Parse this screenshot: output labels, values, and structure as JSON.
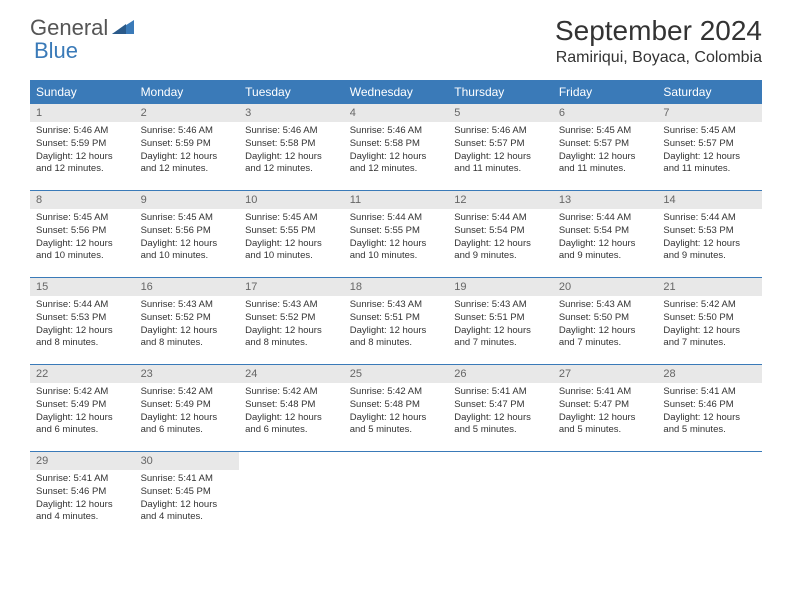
{
  "logo": {
    "text1": "General",
    "text2": "Blue"
  },
  "title": "September 2024",
  "location": "Ramiriqui, Boyaca, Colombia",
  "colors": {
    "header_bg": "#3a7ab8",
    "header_text": "#ffffff",
    "daynum_bg": "#e8e8e8",
    "daynum_text": "#666666",
    "body_text": "#333333",
    "divider": "#3a7ab8",
    "logo_gray": "#555555",
    "logo_blue": "#3a7ab8"
  },
  "day_labels": [
    "Sunday",
    "Monday",
    "Tuesday",
    "Wednesday",
    "Thursday",
    "Friday",
    "Saturday"
  ],
  "weeks": [
    [
      {
        "num": "1",
        "sunrise": "Sunrise: 5:46 AM",
        "sunset": "Sunset: 5:59 PM",
        "daylight": "Daylight: 12 hours and 12 minutes."
      },
      {
        "num": "2",
        "sunrise": "Sunrise: 5:46 AM",
        "sunset": "Sunset: 5:59 PM",
        "daylight": "Daylight: 12 hours and 12 minutes."
      },
      {
        "num": "3",
        "sunrise": "Sunrise: 5:46 AM",
        "sunset": "Sunset: 5:58 PM",
        "daylight": "Daylight: 12 hours and 12 minutes."
      },
      {
        "num": "4",
        "sunrise": "Sunrise: 5:46 AM",
        "sunset": "Sunset: 5:58 PM",
        "daylight": "Daylight: 12 hours and 12 minutes."
      },
      {
        "num": "5",
        "sunrise": "Sunrise: 5:46 AM",
        "sunset": "Sunset: 5:57 PM",
        "daylight": "Daylight: 12 hours and 11 minutes."
      },
      {
        "num": "6",
        "sunrise": "Sunrise: 5:45 AM",
        "sunset": "Sunset: 5:57 PM",
        "daylight": "Daylight: 12 hours and 11 minutes."
      },
      {
        "num": "7",
        "sunrise": "Sunrise: 5:45 AM",
        "sunset": "Sunset: 5:57 PM",
        "daylight": "Daylight: 12 hours and 11 minutes."
      }
    ],
    [
      {
        "num": "8",
        "sunrise": "Sunrise: 5:45 AM",
        "sunset": "Sunset: 5:56 PM",
        "daylight": "Daylight: 12 hours and 10 minutes."
      },
      {
        "num": "9",
        "sunrise": "Sunrise: 5:45 AM",
        "sunset": "Sunset: 5:56 PM",
        "daylight": "Daylight: 12 hours and 10 minutes."
      },
      {
        "num": "10",
        "sunrise": "Sunrise: 5:45 AM",
        "sunset": "Sunset: 5:55 PM",
        "daylight": "Daylight: 12 hours and 10 minutes."
      },
      {
        "num": "11",
        "sunrise": "Sunrise: 5:44 AM",
        "sunset": "Sunset: 5:55 PM",
        "daylight": "Daylight: 12 hours and 10 minutes."
      },
      {
        "num": "12",
        "sunrise": "Sunrise: 5:44 AM",
        "sunset": "Sunset: 5:54 PM",
        "daylight": "Daylight: 12 hours and 9 minutes."
      },
      {
        "num": "13",
        "sunrise": "Sunrise: 5:44 AM",
        "sunset": "Sunset: 5:54 PM",
        "daylight": "Daylight: 12 hours and 9 minutes."
      },
      {
        "num": "14",
        "sunrise": "Sunrise: 5:44 AM",
        "sunset": "Sunset: 5:53 PM",
        "daylight": "Daylight: 12 hours and 9 minutes."
      }
    ],
    [
      {
        "num": "15",
        "sunrise": "Sunrise: 5:44 AM",
        "sunset": "Sunset: 5:53 PM",
        "daylight": "Daylight: 12 hours and 8 minutes."
      },
      {
        "num": "16",
        "sunrise": "Sunrise: 5:43 AM",
        "sunset": "Sunset: 5:52 PM",
        "daylight": "Daylight: 12 hours and 8 minutes."
      },
      {
        "num": "17",
        "sunrise": "Sunrise: 5:43 AM",
        "sunset": "Sunset: 5:52 PM",
        "daylight": "Daylight: 12 hours and 8 minutes."
      },
      {
        "num": "18",
        "sunrise": "Sunrise: 5:43 AM",
        "sunset": "Sunset: 5:51 PM",
        "daylight": "Daylight: 12 hours and 8 minutes."
      },
      {
        "num": "19",
        "sunrise": "Sunrise: 5:43 AM",
        "sunset": "Sunset: 5:51 PM",
        "daylight": "Daylight: 12 hours and 7 minutes."
      },
      {
        "num": "20",
        "sunrise": "Sunrise: 5:43 AM",
        "sunset": "Sunset: 5:50 PM",
        "daylight": "Daylight: 12 hours and 7 minutes."
      },
      {
        "num": "21",
        "sunrise": "Sunrise: 5:42 AM",
        "sunset": "Sunset: 5:50 PM",
        "daylight": "Daylight: 12 hours and 7 minutes."
      }
    ],
    [
      {
        "num": "22",
        "sunrise": "Sunrise: 5:42 AM",
        "sunset": "Sunset: 5:49 PM",
        "daylight": "Daylight: 12 hours and 6 minutes."
      },
      {
        "num": "23",
        "sunrise": "Sunrise: 5:42 AM",
        "sunset": "Sunset: 5:49 PM",
        "daylight": "Daylight: 12 hours and 6 minutes."
      },
      {
        "num": "24",
        "sunrise": "Sunrise: 5:42 AM",
        "sunset": "Sunset: 5:48 PM",
        "daylight": "Daylight: 12 hours and 6 minutes."
      },
      {
        "num": "25",
        "sunrise": "Sunrise: 5:42 AM",
        "sunset": "Sunset: 5:48 PM",
        "daylight": "Daylight: 12 hours and 5 minutes."
      },
      {
        "num": "26",
        "sunrise": "Sunrise: 5:41 AM",
        "sunset": "Sunset: 5:47 PM",
        "daylight": "Daylight: 12 hours and 5 minutes."
      },
      {
        "num": "27",
        "sunrise": "Sunrise: 5:41 AM",
        "sunset": "Sunset: 5:47 PM",
        "daylight": "Daylight: 12 hours and 5 minutes."
      },
      {
        "num": "28",
        "sunrise": "Sunrise: 5:41 AM",
        "sunset": "Sunset: 5:46 PM",
        "daylight": "Daylight: 12 hours and 5 minutes."
      }
    ],
    [
      {
        "num": "29",
        "sunrise": "Sunrise: 5:41 AM",
        "sunset": "Sunset: 5:46 PM",
        "daylight": "Daylight: 12 hours and 4 minutes."
      },
      {
        "num": "30",
        "sunrise": "Sunrise: 5:41 AM",
        "sunset": "Sunset: 5:45 PM",
        "daylight": "Daylight: 12 hours and 4 minutes."
      },
      {
        "empty": true
      },
      {
        "empty": true
      },
      {
        "empty": true
      },
      {
        "empty": true
      },
      {
        "empty": true
      }
    ]
  ]
}
